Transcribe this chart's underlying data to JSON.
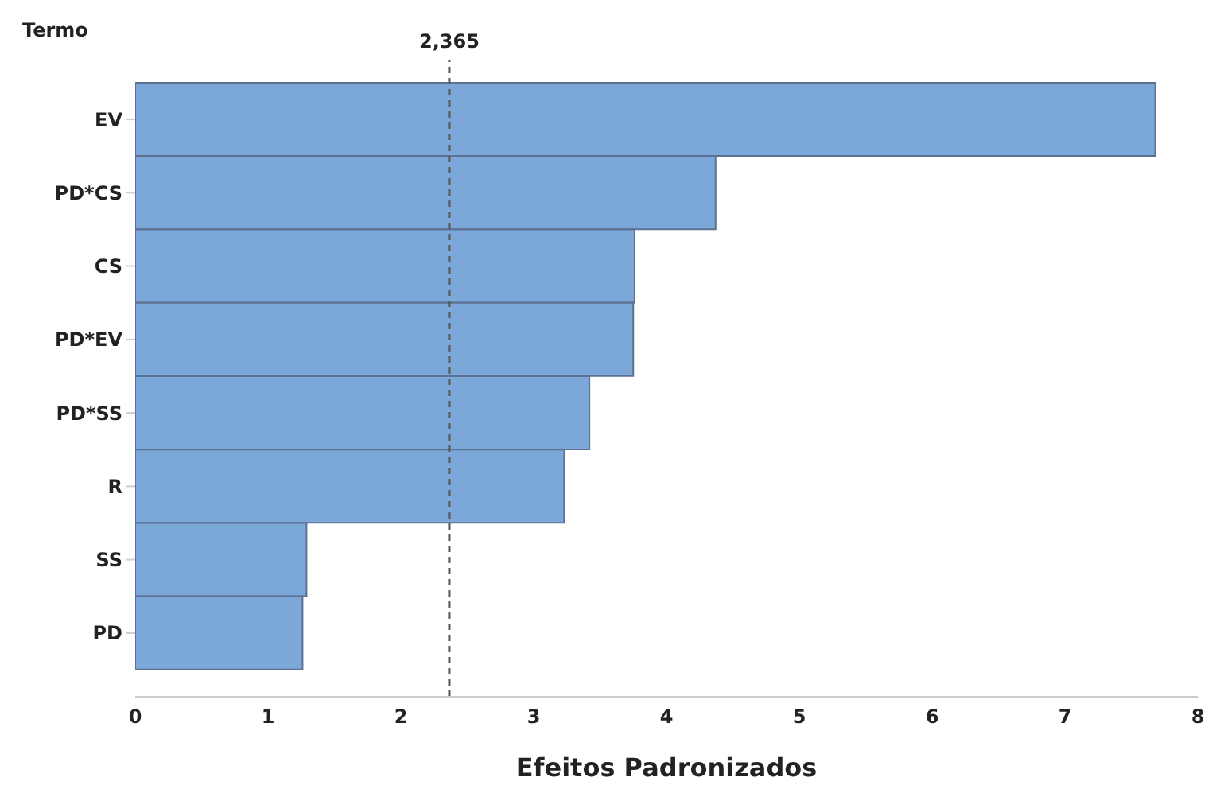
{
  "chart_data": {
    "type": "bar",
    "orientation": "horizontal",
    "xlabel": "Efeitos Padronizados",
    "ylabel": "Termo",
    "categories": [
      "EV",
      "PD*CS",
      "CS",
      "PD*EV",
      "PD*SS",
      "R",
      "SS",
      "PD"
    ],
    "values": [
      7.68,
      4.37,
      3.76,
      3.75,
      3.42,
      3.23,
      1.29,
      1.26
    ],
    "color": "#7ba7d9",
    "xlim": [
      0,
      8
    ],
    "xticks": [
      0,
      1,
      2,
      3,
      4,
      5,
      6,
      7,
      8
    ],
    "ref_lines": [
      {
        "axis": "x",
        "value": 2.365,
        "label": "2,365",
        "line_style": "dashed",
        "color": "#555555"
      }
    ],
    "grid": false,
    "legend": false
  }
}
